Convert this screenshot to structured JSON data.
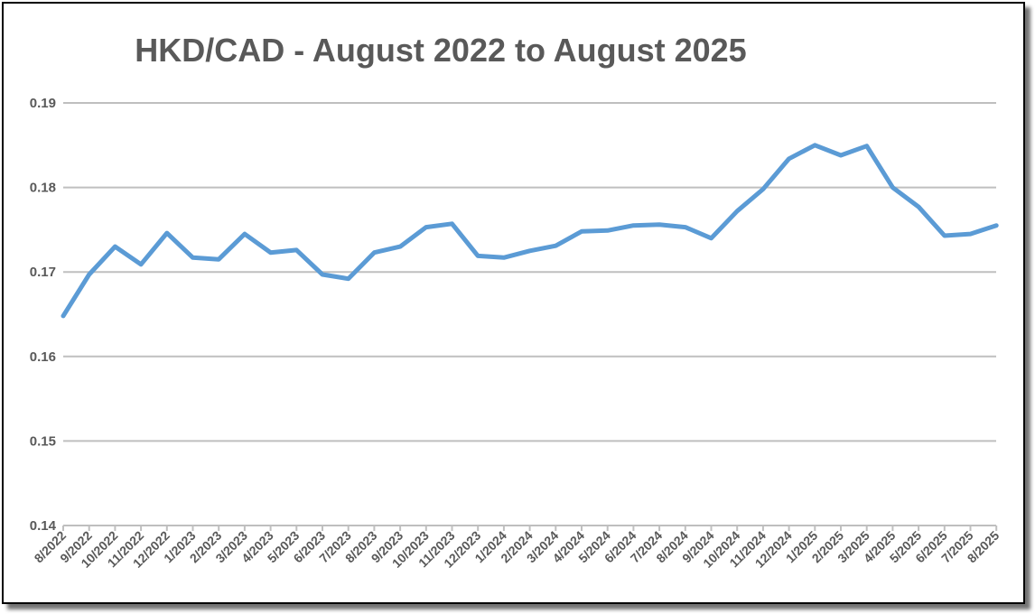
{
  "chart_data": {
    "type": "line",
    "title": "HKD/CAD - August 2022 to August 2025",
    "xlabel": "",
    "ylabel": "",
    "ylim": [
      0.14,
      0.19
    ],
    "yticks": [
      "0.14",
      "0.15",
      "0.16",
      "0.17",
      "0.18",
      "0.19"
    ],
    "grid": true,
    "legend": "none",
    "line_color": "#5B9BD5",
    "categories": [
      "8/2022",
      "9/2022",
      "10/2022",
      "11/2022",
      "12/2022",
      "1/2023",
      "2/2023",
      "3/2023",
      "4/2023",
      "5/2023",
      "6/2023",
      "7/2023",
      "8/2023",
      "9/2023",
      "10/2023",
      "11/2023",
      "12/2023",
      "1/2024",
      "2/2024",
      "3/2024",
      "4/2024",
      "5/2024",
      "6/2024",
      "7/2024",
      "8/2024",
      "9/2024",
      "10/2024",
      "11/2024",
      "12/2024",
      "1/2025",
      "2/2025",
      "3/2025",
      "4/2025",
      "5/2025",
      "6/2025",
      "7/2025",
      "8/2025"
    ],
    "series": [
      {
        "values": [
          0.1648,
          0.1697,
          0.173,
          0.1709,
          0.1746,
          0.1717,
          0.1715,
          0.1745,
          0.1723,
          0.1726,
          0.1697,
          0.1692,
          0.1723,
          0.173,
          0.1753,
          0.1757,
          0.1719,
          0.1717,
          0.1725,
          0.1731,
          0.1748,
          0.1749,
          0.1755,
          0.1756,
          0.1753,
          0.174,
          0.1772,
          0.1798,
          0.1834,
          0.185,
          0.1838,
          0.1849,
          0.18,
          0.1777,
          0.1743,
          0.1745,
          0.1755
        ]
      }
    ]
  }
}
